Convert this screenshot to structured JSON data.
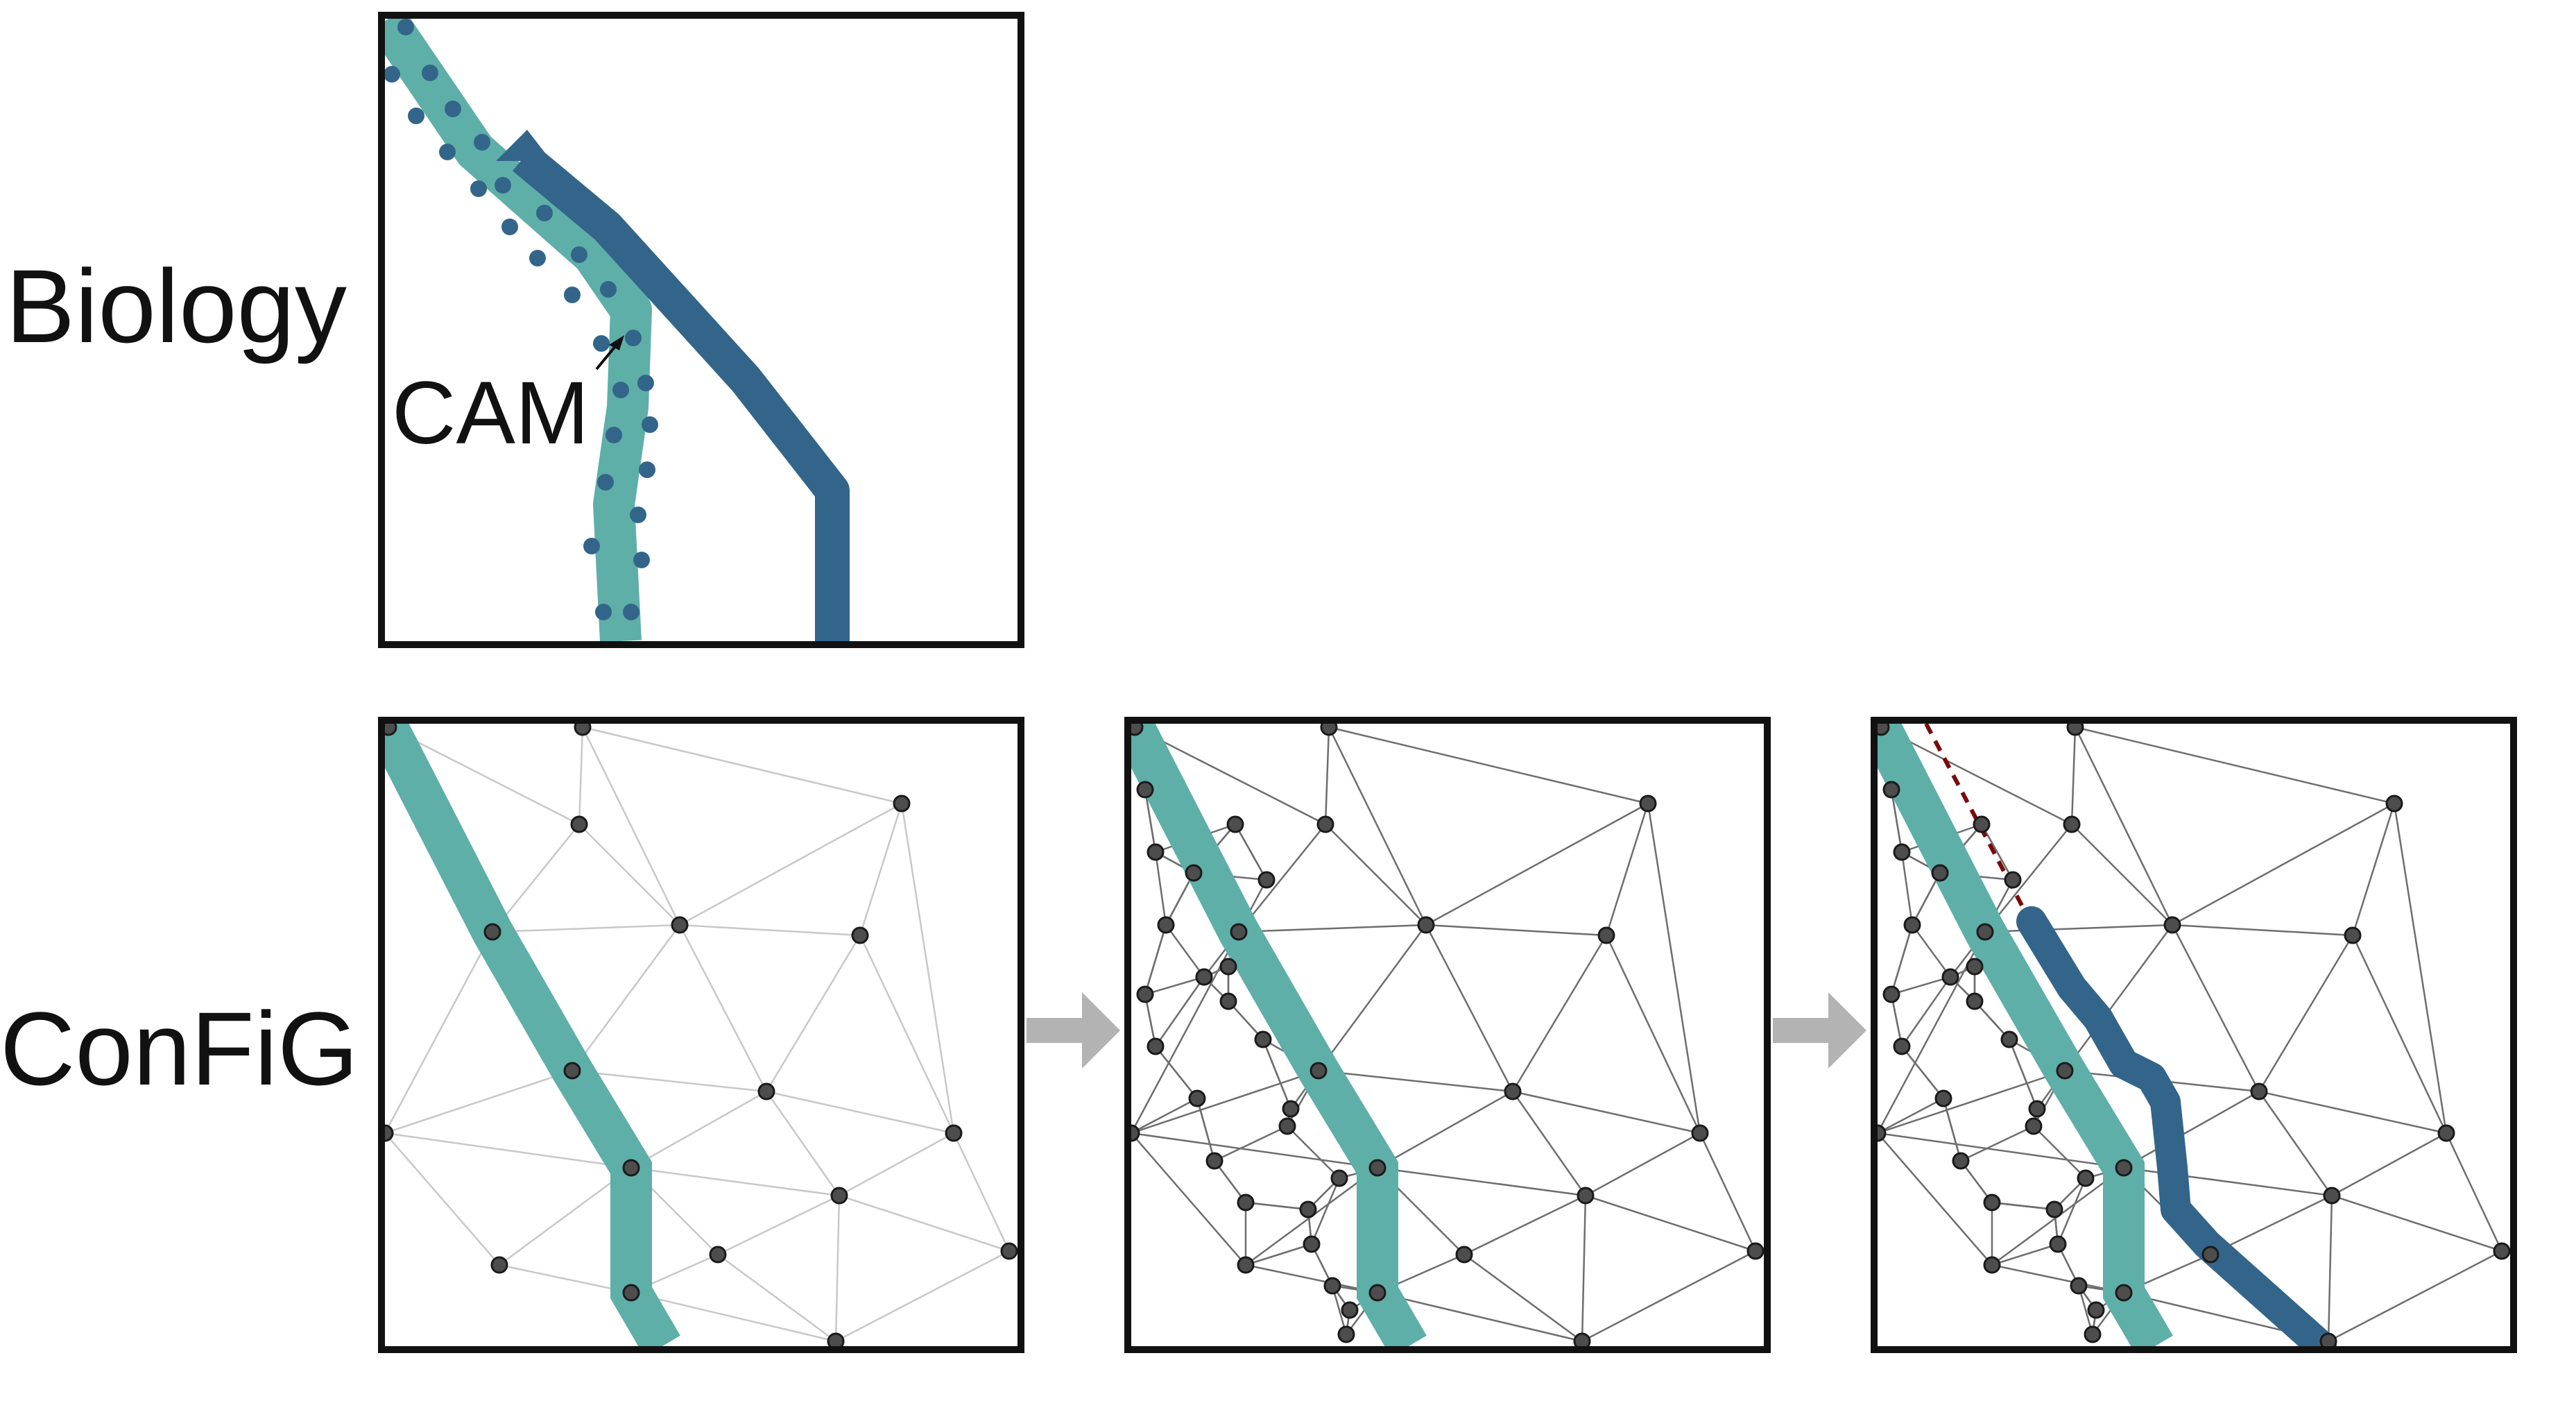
{
  "rows": {
    "biology_label": "Biology",
    "config_label": "ConFiG"
  },
  "biology_panel": {
    "annotation": "CAM"
  },
  "colors": {
    "teal_tract": "#5EAFA8",
    "dark_axon": "#33658A",
    "node_fill": "#4D4D4D",
    "dashed_guide": "#7A0A0A",
    "arrow_gray": "#B3B3B3",
    "frame": "#111111"
  },
  "icons": {
    "step_arrow": "right-arrow-icon"
  }
}
